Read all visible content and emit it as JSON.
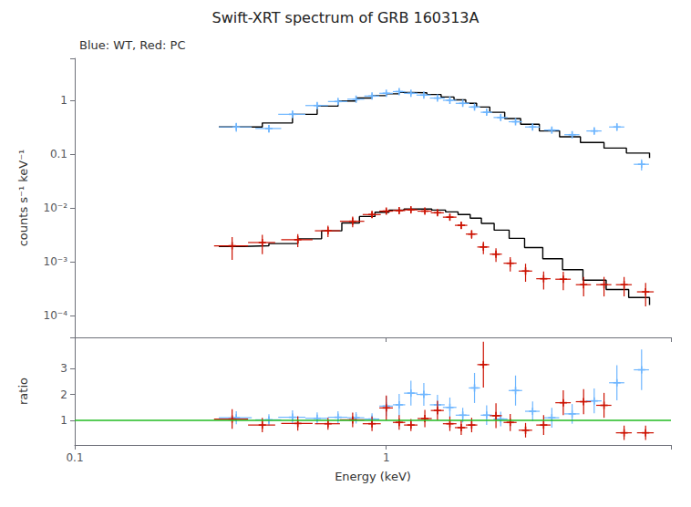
{
  "chart_data": [
    {
      "type": "scatter",
      "title": "Swift-XRT spectrum of GRB 160313A",
      "subtitle": "Blue: WT, Red: PC",
      "ylabel": "counts s⁻¹ keV⁻¹",
      "log": true,
      "xlim": [
        0.1,
        8.2
      ],
      "xticks": [
        0.1,
        1
      ],
      "ylim": [
        4e-05,
        6.0
      ],
      "yticks": [
        {
          "value": 0.0001,
          "label": "10⁻⁴"
        },
        {
          "value": 0.001,
          "label": "10⁻³"
        },
        {
          "value": 0.01,
          "label": "10⁻²"
        },
        0.1,
        1
      ],
      "grid": false,
      "tick_labels": "y",
      "series": [
        {
          "type": "scatter",
          "marker": "+",
          "color": "#6eb6ff",
          "x": [
            0.33,
            0.42,
            0.5,
            0.6,
            0.7,
            0.8,
            0.9,
            1.0,
            1.1,
            1.2,
            1.32,
            1.46,
            1.6,
            1.76,
            1.92,
            2.1,
            2.33,
            2.6,
            2.95,
            3.4,
            3.95,
            4.65,
            5.5,
            6.6
          ],
          "values": [
            0.32,
            0.3,
            0.55,
            0.8,
            0.95,
            1.05,
            1.2,
            1.35,
            1.45,
            1.35,
            1.25,
            1.1,
            1.0,
            0.88,
            0.75,
            0.6,
            0.48,
            0.4,
            0.32,
            0.28,
            0.23,
            0.27,
            0.32,
            0.065
          ],
          "xerr_lo": [
            0.04,
            0.04,
            0.05,
            0.05,
            0.05,
            0.05,
            0.05,
            0.05,
            0.05,
            0.06,
            0.07,
            0.08,
            0.08,
            0.09,
            0.08,
            0.09,
            0.12,
            0.13,
            0.16,
            0.19,
            0.22,
            0.26,
            0.31,
            0.37
          ],
          "xerr_hi": [
            0.04,
            0.04,
            0.05,
            0.05,
            0.05,
            0.05,
            0.05,
            0.05,
            0.05,
            0.06,
            0.07,
            0.08,
            0.08,
            0.09,
            0.08,
            0.09,
            0.12,
            0.13,
            0.16,
            0.19,
            0.22,
            0.26,
            0.31,
            0.37
          ],
          "yerr_lo": [
            0.06,
            0.05,
            0.08,
            0.1,
            0.09,
            0.09,
            0.1,
            0.1,
            0.11,
            0.09,
            0.09,
            0.08,
            0.08,
            0.07,
            0.07,
            0.06,
            0.05,
            0.04,
            0.04,
            0.03,
            0.03,
            0.04,
            0.05,
            0.015
          ],
          "yerr_hi": [
            0.06,
            0.05,
            0.08,
            0.1,
            0.09,
            0.09,
            0.1,
            0.1,
            0.11,
            0.09,
            0.09,
            0.08,
            0.08,
            0.07,
            0.07,
            0.06,
            0.05,
            0.04,
            0.04,
            0.03,
            0.03,
            0.04,
            0.05,
            0.015
          ]
        },
        {
          "type": "scatter",
          "marker": "+",
          "color": "#cc1100",
          "x": [
            0.32,
            0.4,
            0.52,
            0.65,
            0.78,
            0.9,
            1.0,
            1.1,
            1.2,
            1.33,
            1.46,
            1.6,
            1.74,
            1.88,
            2.05,
            2.25,
            2.5,
            2.8,
            3.2,
            3.7,
            4.3,
            5.0,
            5.8,
            6.8
          ],
          "values": [
            0.002,
            0.0023,
            0.0026,
            0.0038,
            0.0057,
            0.0076,
            0.0088,
            0.009,
            0.0093,
            0.0088,
            0.0082,
            0.0068,
            0.0048,
            0.0033,
            0.0019,
            0.0014,
            0.00095,
            0.00068,
            0.00049,
            0.00048,
            0.00038,
            0.00038,
            0.00038,
            0.00028
          ],
          "xerr_lo": [
            0.04,
            0.04,
            0.06,
            0.06,
            0.07,
            0.06,
            0.05,
            0.05,
            0.06,
            0.07,
            0.07,
            0.08,
            0.08,
            0.08,
            0.09,
            0.1,
            0.12,
            0.14,
            0.17,
            0.21,
            0.24,
            0.28,
            0.34,
            0.42
          ],
          "xerr_hi": [
            0.04,
            0.04,
            0.06,
            0.06,
            0.07,
            0.06,
            0.05,
            0.05,
            0.06,
            0.07,
            0.07,
            0.08,
            0.08,
            0.08,
            0.09,
            0.1,
            0.12,
            0.14,
            0.17,
            0.21,
            0.24,
            0.28,
            0.34,
            0.42
          ],
          "yerr_lo": [
            0.0009,
            0.0009,
            0.0007,
            0.0009,
            0.0013,
            0.001,
            0.0009,
            0.0009,
            0.0009,
            0.0009,
            0.0009,
            0.0008,
            0.0007,
            0.0006,
            0.0005,
            0.0004,
            0.00028,
            0.00025,
            0.00018,
            0.00018,
            0.00015,
            0.00015,
            0.00015,
            0.00013
          ],
          "yerr_hi": [
            0.0009,
            0.0009,
            0.0007,
            0.0009,
            0.0013,
            0.001,
            0.0009,
            0.0009,
            0.0009,
            0.0009,
            0.0009,
            0.0008,
            0.0007,
            0.0006,
            0.0005,
            0.0004,
            0.00028,
            0.00025,
            0.00018,
            0.00018,
            0.00015,
            0.00015,
            0.00015,
            0.00013
          ]
        },
        {
          "type": "step",
          "color": "black",
          "x": [
            0.29,
            0.35,
            0.4,
            0.5,
            0.6,
            0.7,
            0.8,
            0.9,
            1.0,
            1.1,
            1.2,
            1.35,
            1.5,
            1.65,
            1.8,
            1.95,
            2.15,
            2.4,
            2.7,
            3.1,
            3.6,
            4.2,
            5.0,
            5.9,
            7.0
          ],
          "values": [
            0.32,
            0.32,
            0.38,
            0.55,
            0.78,
            0.97,
            1.1,
            1.22,
            1.32,
            1.4,
            1.38,
            1.28,
            1.15,
            1.02,
            0.88,
            0.75,
            0.6,
            0.46,
            0.36,
            0.27,
            0.21,
            0.165,
            0.13,
            0.105,
            0.085
          ]
        },
        {
          "type": "step",
          "color": "black",
          "x": [
            0.29,
            0.35,
            0.42,
            0.52,
            0.62,
            0.72,
            0.82,
            0.92,
            1.02,
            1.14,
            1.26,
            1.4,
            1.55,
            1.7,
            1.86,
            2.02,
            2.22,
            2.48,
            2.78,
            3.18,
            3.68,
            4.28,
            5.08,
            6.0,
            7.0
          ],
          "values": [
            0.00195,
            0.002,
            0.0022,
            0.0027,
            0.0038,
            0.0053,
            0.007,
            0.0084,
            0.0092,
            0.0096,
            0.0096,
            0.0092,
            0.0085,
            0.0076,
            0.0065,
            0.0052,
            0.0039,
            0.00275,
            0.00185,
            0.00115,
            0.00072,
            0.00046,
            0.00031,
            0.00022,
            0.00016
          ]
        }
      ]
    },
    {
      "type": "scatter",
      "xlabel": "Energy (keV)",
      "ylabel": "ratio",
      "log": "x",
      "xlim": [
        0.1,
        8.2
      ],
      "xticks": [
        0.1,
        1
      ],
      "ylim": [
        0.05,
        4.2
      ],
      "yticks": [
        1,
        2,
        3
      ],
      "grid": false,
      "series": [
        {
          "type": "scatter",
          "marker": "+",
          "color": "#6eb6ff",
          "x": [
            0.33,
            0.42,
            0.5,
            0.6,
            0.7,
            0.8,
            0.9,
            1.0,
            1.1,
            1.2,
            1.32,
            1.46,
            1.6,
            1.76,
            1.92,
            2.1,
            2.33,
            2.6,
            2.95,
            3.4,
            3.95,
            4.65,
            5.5,
            6.6
          ],
          "values": [
            1.1,
            1.02,
            1.12,
            1.08,
            1.12,
            1.1,
            1.05,
            1.55,
            1.6,
            2.05,
            2.0,
            1.6,
            1.5,
            1.2,
            2.25,
            1.2,
            1.05,
            2.15,
            1.35,
            1.1,
            1.25,
            1.75,
            2.45,
            2.95
          ],
          "xerr_lo": [
            0.04,
            0.04,
            0.05,
            0.05,
            0.05,
            0.05,
            0.05,
            0.05,
            0.05,
            0.06,
            0.07,
            0.08,
            0.08,
            0.09,
            0.08,
            0.09,
            0.12,
            0.13,
            0.16,
            0.19,
            0.22,
            0.26,
            0.31,
            0.37
          ],
          "xerr_hi": [
            0.04,
            0.04,
            0.05,
            0.05,
            0.05,
            0.05,
            0.05,
            0.05,
            0.05,
            0.06,
            0.07,
            0.08,
            0.08,
            0.09,
            0.08,
            0.09,
            0.12,
            0.13,
            0.16,
            0.19,
            0.22,
            0.26,
            0.31,
            0.37
          ],
          "yerr_lo": [
            0.25,
            0.22,
            0.27,
            0.23,
            0.23,
            0.22,
            0.22,
            0.38,
            0.42,
            0.48,
            0.44,
            0.38,
            0.38,
            0.28,
            0.58,
            0.38,
            0.28,
            0.58,
            0.38,
            0.38,
            0.38,
            0.48,
            0.68,
            0.78
          ],
          "yerr_hi": [
            0.25,
            0.22,
            0.27,
            0.23,
            0.23,
            0.22,
            0.22,
            0.38,
            0.42,
            0.48,
            0.44,
            0.38,
            0.38,
            0.28,
            0.58,
            0.38,
            0.28,
            0.58,
            0.38,
            0.38,
            0.38,
            0.48,
            0.68,
            0.78
          ]
        },
        {
          "type": "scatter",
          "marker": "+",
          "color": "#cc1100",
          "x": [
            0.32,
            0.4,
            0.52,
            0.65,
            0.78,
            0.9,
            1.0,
            1.1,
            1.2,
            1.33,
            1.46,
            1.6,
            1.74,
            1.88,
            2.05,
            2.25,
            2.5,
            2.8,
            3.2,
            3.7,
            4.3,
            5.0,
            5.8,
            6.8
          ],
          "values": [
            1.05,
            0.82,
            0.88,
            0.87,
            1.02,
            0.87,
            1.48,
            0.92,
            0.82,
            1.07,
            1.38,
            0.87,
            0.72,
            0.82,
            3.15,
            1.18,
            0.92,
            0.62,
            0.82,
            1.68,
            1.72,
            1.58,
            0.52,
            0.52
          ],
          "xerr_lo": [
            0.04,
            0.04,
            0.06,
            0.06,
            0.07,
            0.06,
            0.05,
            0.05,
            0.06,
            0.07,
            0.07,
            0.08,
            0.08,
            0.08,
            0.09,
            0.1,
            0.12,
            0.14,
            0.17,
            0.21,
            0.24,
            0.28,
            0.34,
            0.42
          ],
          "xerr_hi": [
            0.04,
            0.04,
            0.06,
            0.06,
            0.07,
            0.06,
            0.05,
            0.05,
            0.06,
            0.07,
            0.07,
            0.08,
            0.08,
            0.08,
            0.09,
            0.1,
            0.12,
            0.14,
            0.17,
            0.21,
            0.24,
            0.28,
            0.34,
            0.42
          ],
          "yerr_lo": [
            0.38,
            0.28,
            0.28,
            0.23,
            0.28,
            0.28,
            0.48,
            0.28,
            0.23,
            0.33,
            0.38,
            0.28,
            0.28,
            0.28,
            0.88,
            0.48,
            0.33,
            0.28,
            0.38,
            0.48,
            0.48,
            0.48,
            0.28,
            0.28
          ],
          "yerr_hi": [
            0.38,
            0.28,
            0.28,
            0.23,
            0.28,
            0.28,
            0.48,
            0.28,
            0.23,
            0.33,
            0.38,
            0.28,
            0.28,
            0.28,
            0.88,
            0.48,
            0.33,
            0.28,
            0.38,
            0.48,
            0.48,
            0.48,
            0.28,
            0.28
          ]
        },
        {
          "type": "hline",
          "color": "#22bb22",
          "values": [
            1
          ]
        }
      ]
    }
  ]
}
